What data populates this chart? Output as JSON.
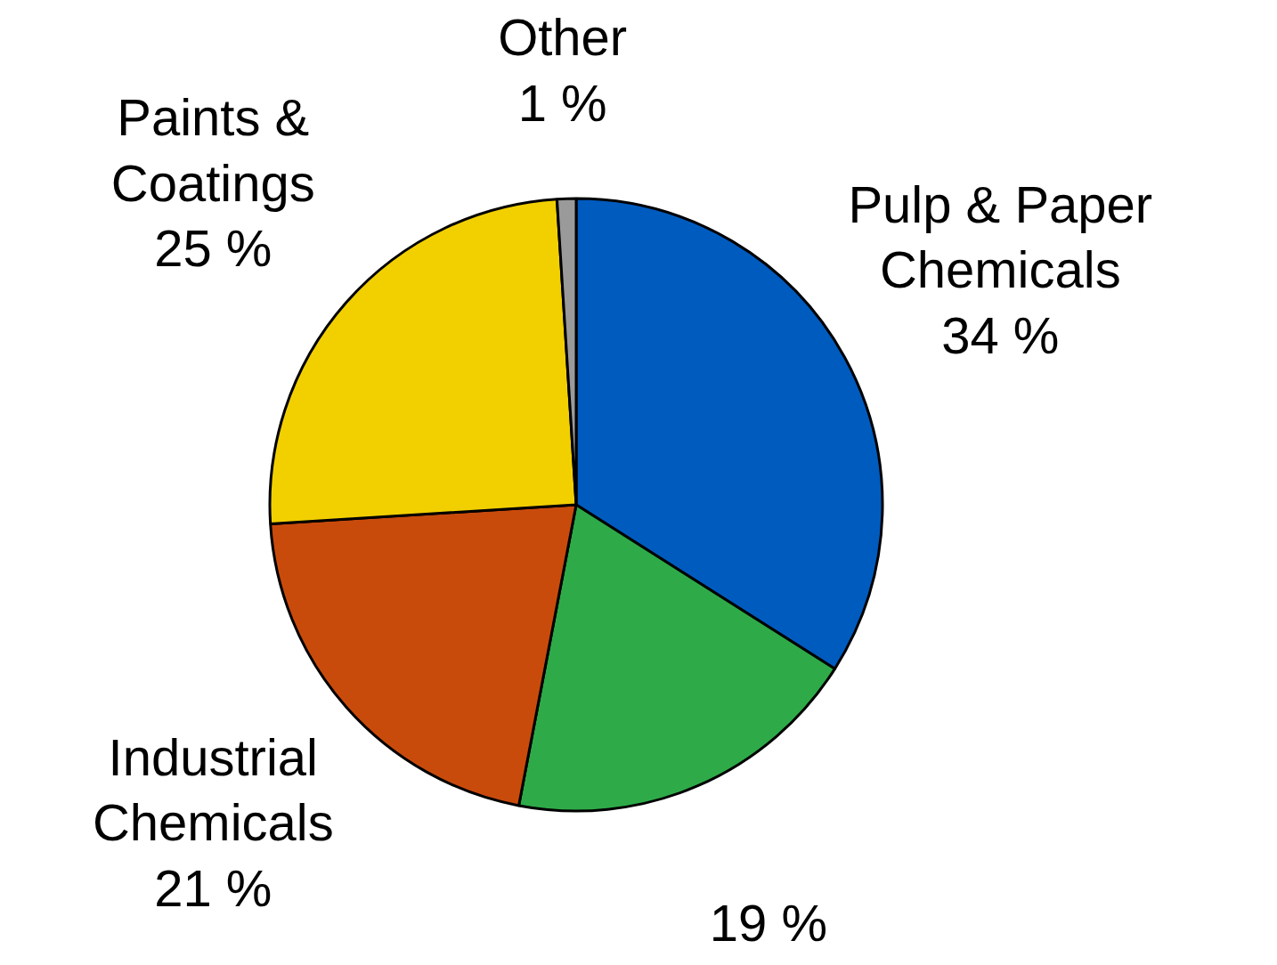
{
  "chart_data": {
    "type": "pie",
    "categories": [
      "Pulp & Paper\nChemicals",
      null,
      "Industrial\nChemicals",
      "Paints &\nCoatings",
      "Other"
    ],
    "values": [
      34,
      19,
      21,
      25,
      1
    ],
    "value_labels": [
      "34 %",
      "19 %",
      "21 %",
      "25 %",
      "1 %"
    ],
    "colors": [
      "#005bbf",
      "#2eab48",
      "#c94b0c",
      "#f2d000",
      "#9a9a9a"
    ]
  }
}
